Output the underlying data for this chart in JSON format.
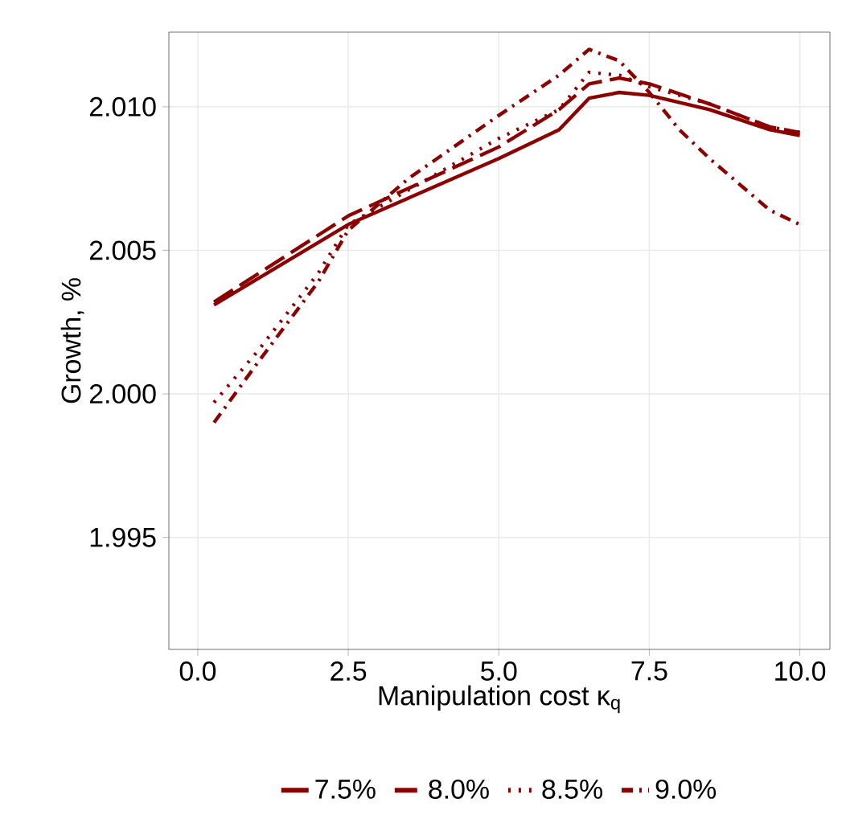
{
  "chart_data": {
    "type": "line",
    "xlabel": "Manipulation cost κ$_{q}$",
    "ylabel": "Growth, %",
    "xlim": [
      -0.48,
      10.5
    ],
    "ylim": [
      1.9911,
      2.0126
    ],
    "xticks": [
      {
        "value": 0,
        "label": "0.0"
      },
      {
        "value": 2.5,
        "label": "2.5"
      },
      {
        "value": 5,
        "label": "5.0"
      },
      {
        "value": 7.5,
        "label": "7.5"
      },
      {
        "value": 10,
        "label": "10.0"
      }
    ],
    "yticks": [
      {
        "value": 1.995,
        "label": "1.995"
      },
      {
        "value": 2.0,
        "label": "2.000"
      },
      {
        "value": 2.005,
        "label": "2.005"
      },
      {
        "value": 2.01,
        "label": "2.010"
      }
    ],
    "grid": true,
    "legend": "bottom",
    "marker": "none",
    "series": [
      {
        "name": "7.5%",
        "color": "#8b0000",
        "line_style": "solid",
        "x": [
          0.27,
          2.5,
          5,
          6,
          6.5,
          7,
          7.5,
          8.5,
          9.5,
          10
        ],
        "values": [
          2.0031,
          2.0059,
          2.0082,
          2.0092,
          2.0103,
          2.0105,
          2.0104,
          2.0099,
          2.0092,
          2.009
        ]
      },
      {
        "name": "8.0%",
        "color": "#8b0000",
        "line_style": "dashed",
        "x": [
          0.27,
          2.5,
          5,
          6,
          6.5,
          7,
          7.5,
          8.5,
          9.5,
          10
        ],
        "values": [
          2.0032,
          2.0062,
          2.0086,
          2.0099,
          2.0108,
          2.011,
          2.0108,
          2.0101,
          2.0093,
          2.0091
        ]
      },
      {
        "name": "8.5%",
        "color": "#8b0000",
        "line_style": "dotted",
        "x": [
          0.27,
          1,
          2,
          2.5,
          3.5,
          5,
          6,
          6.5,
          7,
          7.5,
          8.5,
          9.5,
          10
        ],
        "values": [
          1.9997,
          2.0015,
          2.0042,
          2.0059,
          2.0071,
          2.0089,
          2.0099,
          2.0112,
          2.0111,
          2.0107,
          2.0101,
          2.0093,
          2.0091
        ]
      },
      {
        "name": "9.0%",
        "color": "#8b0000",
        "line_style": "dashdot",
        "x": [
          0.27,
          1,
          2,
          2.5,
          3.5,
          5,
          6,
          6.5,
          7,
          7.5,
          8,
          8.5,
          9,
          9.5,
          10
        ],
        "values": [
          1.999,
          2.0011,
          2.0039,
          2.0057,
          2.0075,
          2.0097,
          2.0111,
          2.012,
          2.0116,
          2.0105,
          2.0092,
          2.0082,
          2.0073,
          2.0064,
          2.0059
        ]
      }
    ]
  }
}
